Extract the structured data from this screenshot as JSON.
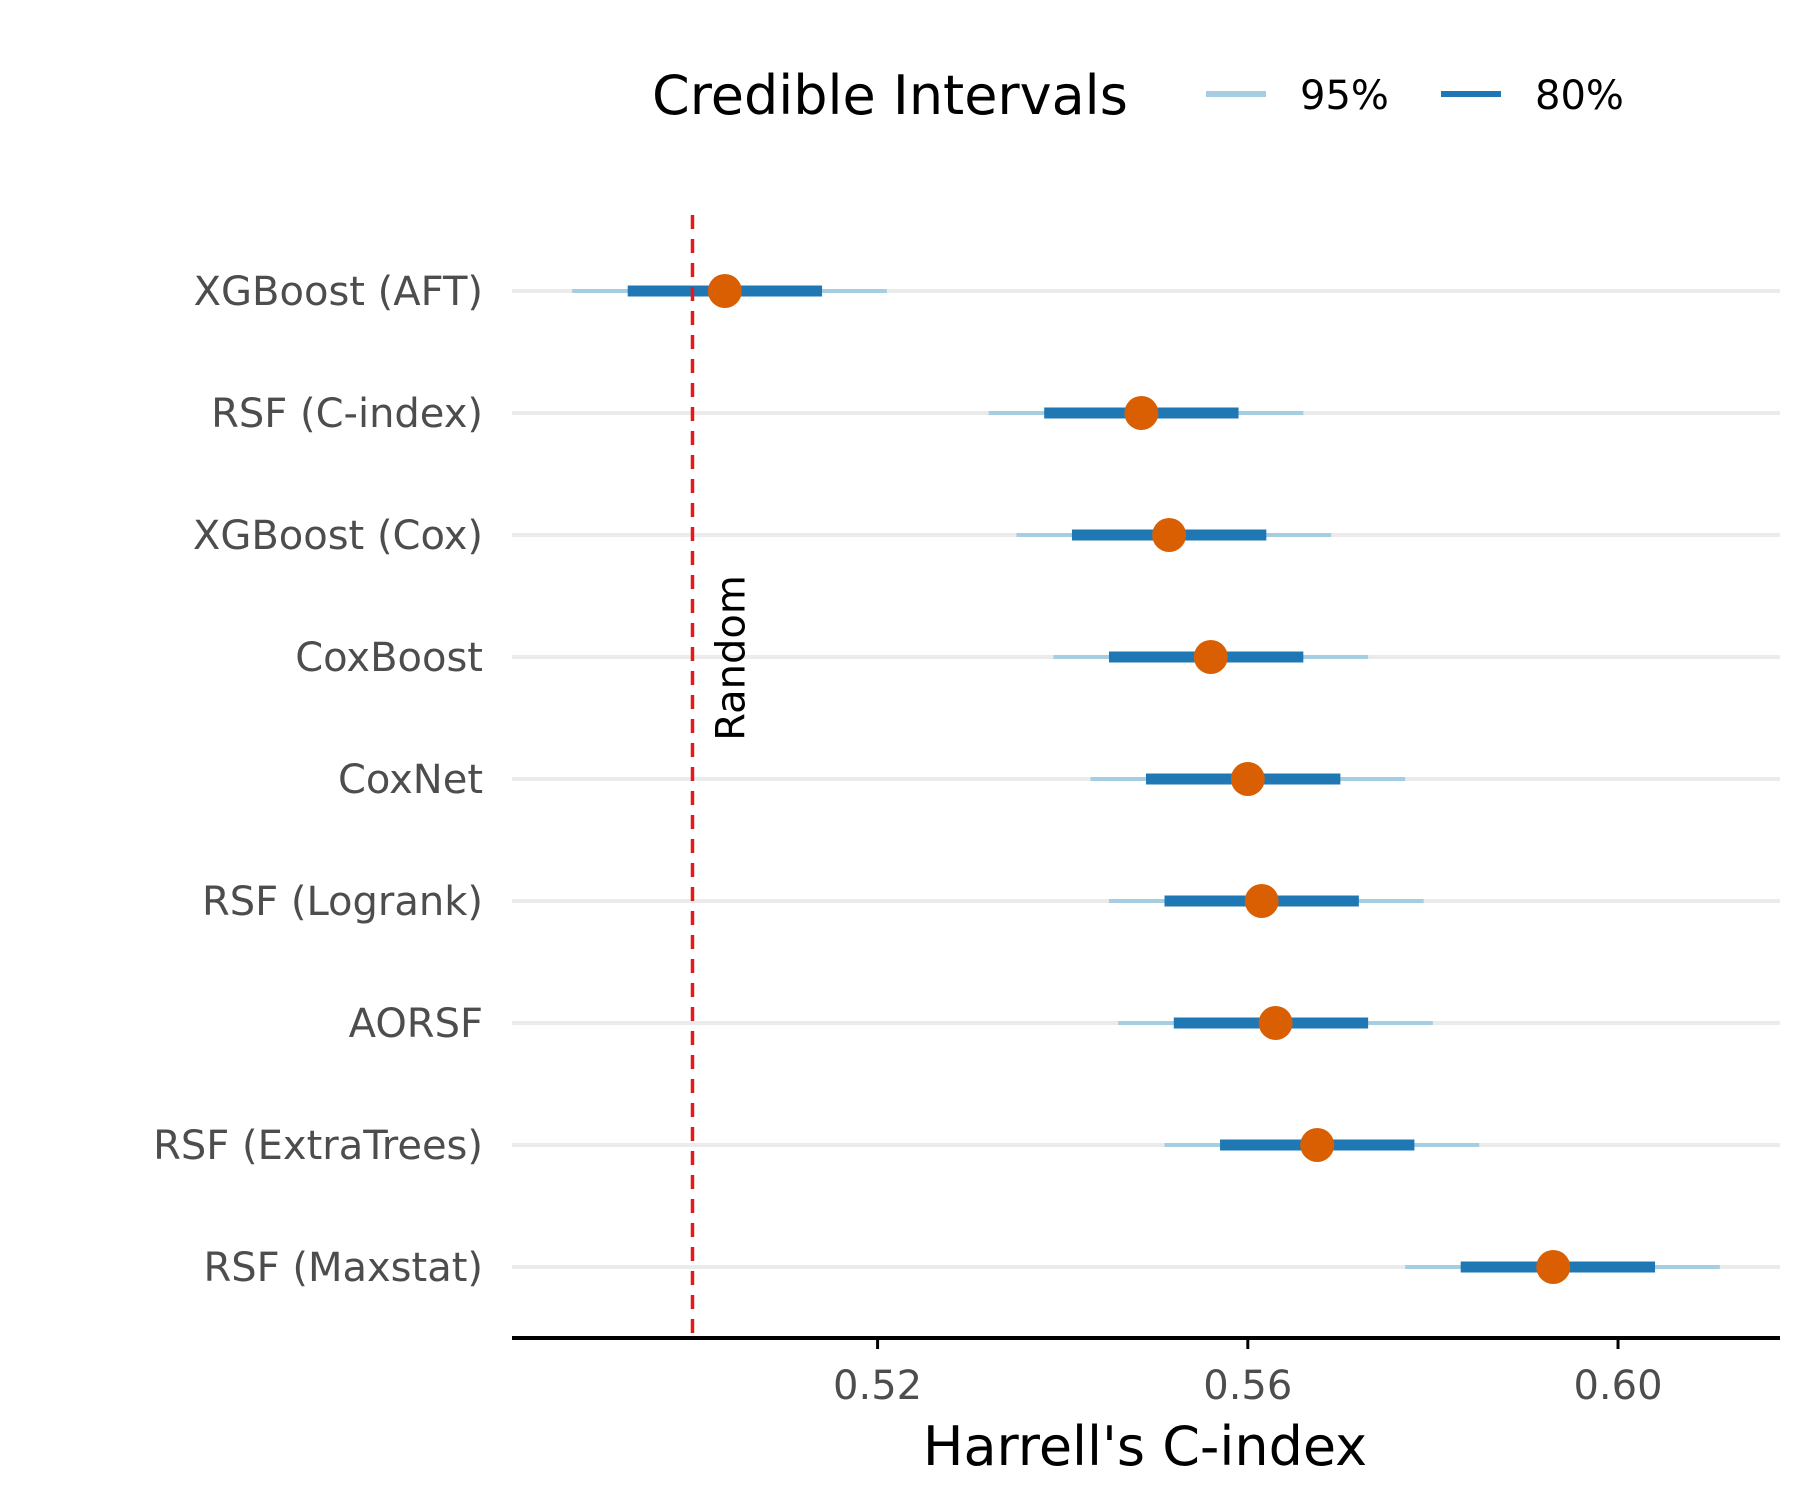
{
  "legend": {
    "title": "Credible Intervals",
    "items": [
      {
        "label": "95%",
        "color": "#a6cee3"
      },
      {
        "label": "80%",
        "color": "#1f78b4"
      }
    ]
  },
  "colors": {
    "point": "#d95f02",
    "reference": "#e31a1c",
    "gridline": "#ebebeb",
    "axis": "#000000"
  },
  "chart_data": {
    "type": "interval",
    "xlabel": "Harrell's C-index",
    "ylabel": "",
    "xlim": [
      0.4805,
      0.6175
    ],
    "xticks": [
      0.52,
      0.56,
      0.6
    ],
    "xtick_labels": [
      "0.52",
      "0.56",
      "0.60"
    ],
    "grid": "horizontal",
    "legend_position": "top",
    "reference_line": {
      "value": 0.5,
      "label": "Random",
      "style": "dashed"
    },
    "categories": [
      "XGBoost (AFT)",
      "RSF (C-index)",
      "XGBoost (Cox)",
      "CoxBoost",
      "CoxNet",
      "RSF (Logrank)",
      "AORSF",
      "RSF (ExtraTrees)",
      "RSF (Maxstat)"
    ],
    "series": [
      {
        "name": "95%",
        "low": [
          0.487,
          0.532,
          0.535,
          0.539,
          0.543,
          0.545,
          0.546,
          0.551,
          0.577
        ],
        "high": [
          0.521,
          0.566,
          0.569,
          0.573,
          0.577,
          0.579,
          0.58,
          0.585,
          0.611
        ]
      },
      {
        "name": "80%",
        "low": [
          0.493,
          0.538,
          0.541,
          0.545,
          0.549,
          0.551,
          0.552,
          0.557,
          0.583
        ],
        "high": [
          0.514,
          0.559,
          0.562,
          0.566,
          0.57,
          0.572,
          0.573,
          0.578,
          0.604
        ]
      }
    ],
    "point": [
      0.5035,
      0.5485,
      0.5515,
      0.556,
      0.56,
      0.5615,
      0.563,
      0.5675,
      0.593
    ]
  }
}
